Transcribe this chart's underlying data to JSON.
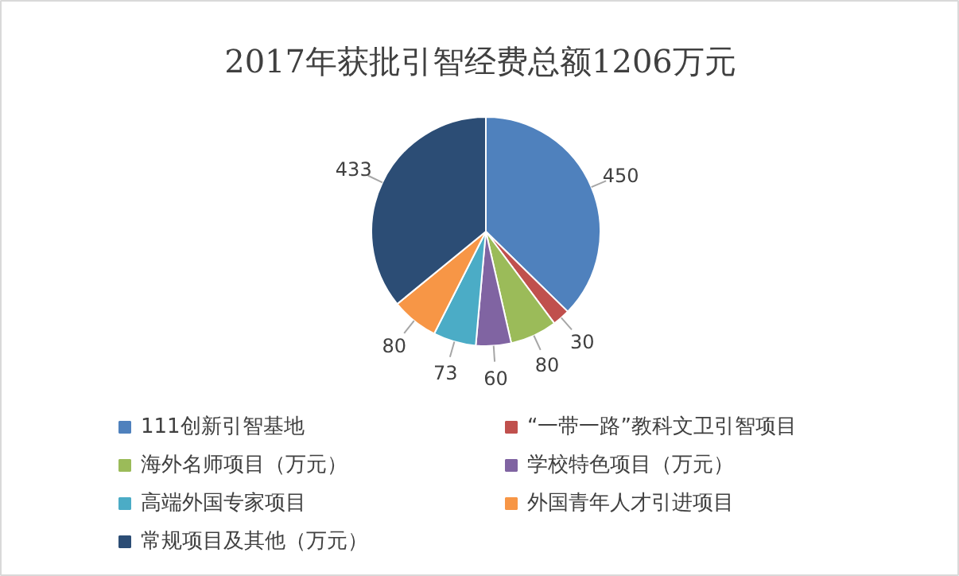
{
  "chart_data": {
    "type": "pie",
    "title": "2017年获批引智经费总额1206万元",
    "categories": [
      "111创新引智基地",
      "“一带一路”教科文卫引智项目",
      "海外名师项目（万元）",
      "学校特色项目（万元）",
      "高端外国专家项目",
      "外国青年人才引进项目",
      "常规项目及其他（万元）"
    ],
    "values": [
      450,
      30,
      80,
      60,
      73,
      80,
      433
    ],
    "colors": [
      "#4f81bd",
      "#c0504d",
      "#9bbb59",
      "#8064a2",
      "#4bacc6",
      "#f79646",
      "#2c4d75"
    ],
    "data_labels": true,
    "legend": "bottom"
  }
}
